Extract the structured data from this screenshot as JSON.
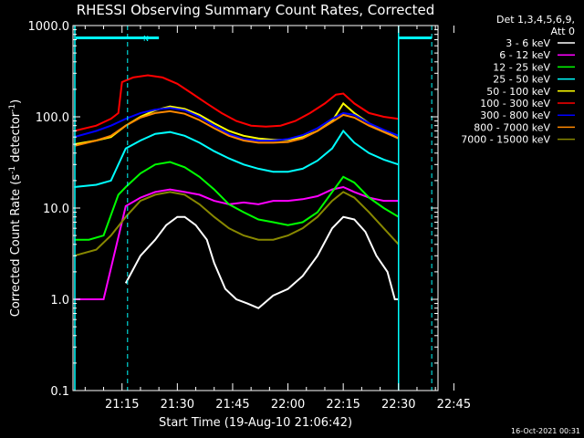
{
  "chart_data": {
    "type": "line",
    "title": "RHESSI Observing Summary Count Rates, Corrected",
    "xlabel": "Start Time (19-Aug-10 21:06:42)",
    "ylabel": "Corrected Count Rate (s⁻¹ detector⁻¹)",
    "ylabel_main": "Corrected Count Rate (s",
    "ylabel_sup1": "-1",
    "ylabel_mid": " detector",
    "ylabel_sup2": "-1",
    "ylabel_end": ")",
    "y_scale": "log",
    "ylim": [
      0.1,
      1000
    ],
    "xlim_minutes": [
      1.7,
      100.7
    ],
    "x_ticks": [
      {
        "label": "21:15",
        "minute": 15
      },
      {
        "label": "21:30",
        "minute": 30
      },
      {
        "label": "21:45",
        "minute": 45
      },
      {
        "label": "22:00",
        "minute": 60
      },
      {
        "label": "22:15",
        "minute": 75
      },
      {
        "label": "22:30",
        "minute": 90
      },
      {
        "label": "22:45",
        "minute": 105
      }
    ],
    "y_ticks": [
      {
        "label": "1000.0",
        "value": 1000
      },
      {
        "label": "100.0",
        "value": 100
      },
      {
        "label": "10.0",
        "value": 10
      },
      {
        "label": "1.0",
        "value": 1
      },
      {
        "label": "0.1",
        "value": 0.1
      }
    ],
    "legend_header": [
      "Det 1,3,4,5,6,9,",
      "Att 0"
    ],
    "legend_placement": "right",
    "annotation": "N",
    "timestamp": "16-Oct-2021 00:31",
    "series": [
      {
        "name": "3 - 6 keV",
        "color": "#ffffff",
        "points": [
          [
            16,
            1.5
          ],
          [
            20,
            3
          ],
          [
            24,
            4.5
          ],
          [
            27,
            6.5
          ],
          [
            30,
            8
          ],
          [
            32,
            8
          ],
          [
            35,
            6.5
          ],
          [
            38,
            4.5
          ],
          [
            40,
            2.5
          ],
          [
            43,
            1.3
          ],
          [
            46,
            1
          ],
          [
            49,
            0.9
          ],
          [
            52,
            0.8
          ],
          [
            56,
            1.1
          ],
          [
            60,
            1.3
          ],
          [
            64,
            1.8
          ],
          [
            68,
            3
          ],
          [
            72,
            6
          ],
          [
            75,
            8
          ],
          [
            78,
            7.5
          ],
          [
            81,
            5.5
          ],
          [
            84,
            3
          ],
          [
            87,
            2
          ],
          [
            89,
            1
          ],
          [
            90,
            1
          ]
        ]
      },
      {
        "name": "6 - 12 keV",
        "color": "#ff00ff",
        "points": [
          [
            2,
            1
          ],
          [
            10,
            1
          ],
          [
            16,
            10.5
          ],
          [
            20,
            13
          ],
          [
            24,
            15
          ],
          [
            28,
            16
          ],
          [
            32,
            15
          ],
          [
            36,
            14
          ],
          [
            40,
            12
          ],
          [
            44,
            11
          ],
          [
            48,
            11.5
          ],
          [
            52,
            11
          ],
          [
            56,
            12
          ],
          [
            60,
            12
          ],
          [
            64,
            12.5
          ],
          [
            68,
            13.5
          ],
          [
            72,
            16
          ],
          [
            75,
            17
          ],
          [
            78,
            15
          ],
          [
            82,
            13
          ],
          [
            86,
            12
          ],
          [
            90,
            12
          ]
        ]
      },
      {
        "name": "12 - 25 keV",
        "color": "#00ff00",
        "points": [
          [
            2,
            4.5
          ],
          [
            6,
            4.5
          ],
          [
            10,
            5
          ],
          [
            14,
            14
          ],
          [
            16,
            17
          ],
          [
            20,
            24
          ],
          [
            24,
            30
          ],
          [
            28,
            32
          ],
          [
            32,
            28
          ],
          [
            36,
            22
          ],
          [
            40,
            16
          ],
          [
            44,
            11
          ],
          [
            48,
            9
          ],
          [
            52,
            7.5
          ],
          [
            56,
            7
          ],
          [
            60,
            6.5
          ],
          [
            64,
            7
          ],
          [
            68,
            9
          ],
          [
            72,
            15
          ],
          [
            75,
            22
          ],
          [
            78,
            19
          ],
          [
            82,
            13
          ],
          [
            86,
            10
          ],
          [
            90,
            8
          ]
        ]
      },
      {
        "name": "25 - 50 keV",
        "color": "#00ffff",
        "points": [
          [
            2,
            17
          ],
          [
            8,
            18
          ],
          [
            12,
            20
          ],
          [
            16,
            45
          ],
          [
            20,
            55
          ],
          [
            24,
            65
          ],
          [
            28,
            68
          ],
          [
            32,
            62
          ],
          [
            36,
            52
          ],
          [
            40,
            42
          ],
          [
            44,
            35
          ],
          [
            48,
            30
          ],
          [
            52,
            27
          ],
          [
            56,
            25
          ],
          [
            60,
            25
          ],
          [
            64,
            27
          ],
          [
            68,
            33
          ],
          [
            72,
            45
          ],
          [
            75,
            70
          ],
          [
            78,
            52
          ],
          [
            82,
            40
          ],
          [
            86,
            34
          ],
          [
            90,
            30
          ]
        ]
      },
      {
        "name": "50 - 100 keV",
        "color": "#ffff00",
        "points": [
          [
            2,
            50
          ],
          [
            8,
            55
          ],
          [
            12,
            60
          ],
          [
            16,
            80
          ],
          [
            20,
            100
          ],
          [
            24,
            118
          ],
          [
            28,
            130
          ],
          [
            32,
            122
          ],
          [
            36,
            105
          ],
          [
            40,
            85
          ],
          [
            44,
            70
          ],
          [
            48,
            62
          ],
          [
            52,
            58
          ],
          [
            56,
            56
          ],
          [
            60,
            56
          ],
          [
            64,
            60
          ],
          [
            68,
            70
          ],
          [
            72,
            90
          ],
          [
            75,
            140
          ],
          [
            78,
            110
          ],
          [
            82,
            85
          ],
          [
            86,
            70
          ],
          [
            90,
            58
          ]
        ]
      },
      {
        "name": "100 - 300 keV",
        "color": "#ff0000",
        "points": [
          [
            2,
            70
          ],
          [
            8,
            80
          ],
          [
            12,
            95
          ],
          [
            14,
            110
          ],
          [
            15,
            240
          ],
          [
            18,
            270
          ],
          [
            22,
            285
          ],
          [
            26,
            270
          ],
          [
            30,
            230
          ],
          [
            34,
            180
          ],
          [
            38,
            140
          ],
          [
            42,
            110
          ],
          [
            46,
            90
          ],
          [
            50,
            80
          ],
          [
            54,
            78
          ],
          [
            58,
            80
          ],
          [
            62,
            90
          ],
          [
            66,
            110
          ],
          [
            70,
            140
          ],
          [
            73,
            175
          ],
          [
            75,
            180
          ],
          [
            78,
            140
          ],
          [
            82,
            110
          ],
          [
            86,
            100
          ],
          [
            90,
            95
          ]
        ]
      },
      {
        "name": "300 - 800 keV",
        "color": "#0000ff",
        "points": [
          [
            2,
            60
          ],
          [
            8,
            70
          ],
          [
            12,
            80
          ],
          [
            16,
            95
          ],
          [
            20,
            110
          ],
          [
            24,
            120
          ],
          [
            28,
            125
          ],
          [
            32,
            118
          ],
          [
            36,
            100
          ],
          [
            40,
            80
          ],
          [
            44,
            65
          ],
          [
            48,
            57
          ],
          [
            52,
            55
          ],
          [
            56,
            55
          ],
          [
            60,
            57
          ],
          [
            64,
            63
          ],
          [
            68,
            75
          ],
          [
            72,
            95
          ],
          [
            75,
            110
          ],
          [
            78,
            105
          ],
          [
            82,
            85
          ],
          [
            86,
            72
          ],
          [
            90,
            62
          ]
        ]
      },
      {
        "name": "800 - 7000 keV",
        "color": "#ff8800",
        "points": [
          [
            2,
            48
          ],
          [
            8,
            55
          ],
          [
            12,
            62
          ],
          [
            16,
            80
          ],
          [
            20,
            98
          ],
          [
            24,
            110
          ],
          [
            28,
            115
          ],
          [
            32,
            108
          ],
          [
            36,
            92
          ],
          [
            40,
            75
          ],
          [
            44,
            62
          ],
          [
            48,
            55
          ],
          [
            52,
            52
          ],
          [
            56,
            52
          ],
          [
            60,
            53
          ],
          [
            64,
            58
          ],
          [
            68,
            70
          ],
          [
            72,
            88
          ],
          [
            75,
            105
          ],
          [
            78,
            98
          ],
          [
            82,
            80
          ],
          [
            86,
            68
          ],
          [
            90,
            58
          ]
        ]
      },
      {
        "name": "7000 - 15000 keV",
        "color": "#888800",
        "points": [
          [
            2,
            3
          ],
          [
            8,
            3.5
          ],
          [
            12,
            5
          ],
          [
            16,
            8
          ],
          [
            20,
            12
          ],
          [
            24,
            14
          ],
          [
            28,
            15
          ],
          [
            32,
            14
          ],
          [
            36,
            11
          ],
          [
            40,
            8
          ],
          [
            44,
            6
          ],
          [
            48,
            5
          ],
          [
            52,
            4.5
          ],
          [
            56,
            4.5
          ],
          [
            60,
            5
          ],
          [
            64,
            6
          ],
          [
            68,
            8
          ],
          [
            72,
            12
          ],
          [
            75,
            15
          ],
          [
            78,
            13
          ],
          [
            82,
            9
          ],
          [
            86,
            6
          ],
          [
            90,
            4
          ]
        ]
      }
    ]
  }
}
